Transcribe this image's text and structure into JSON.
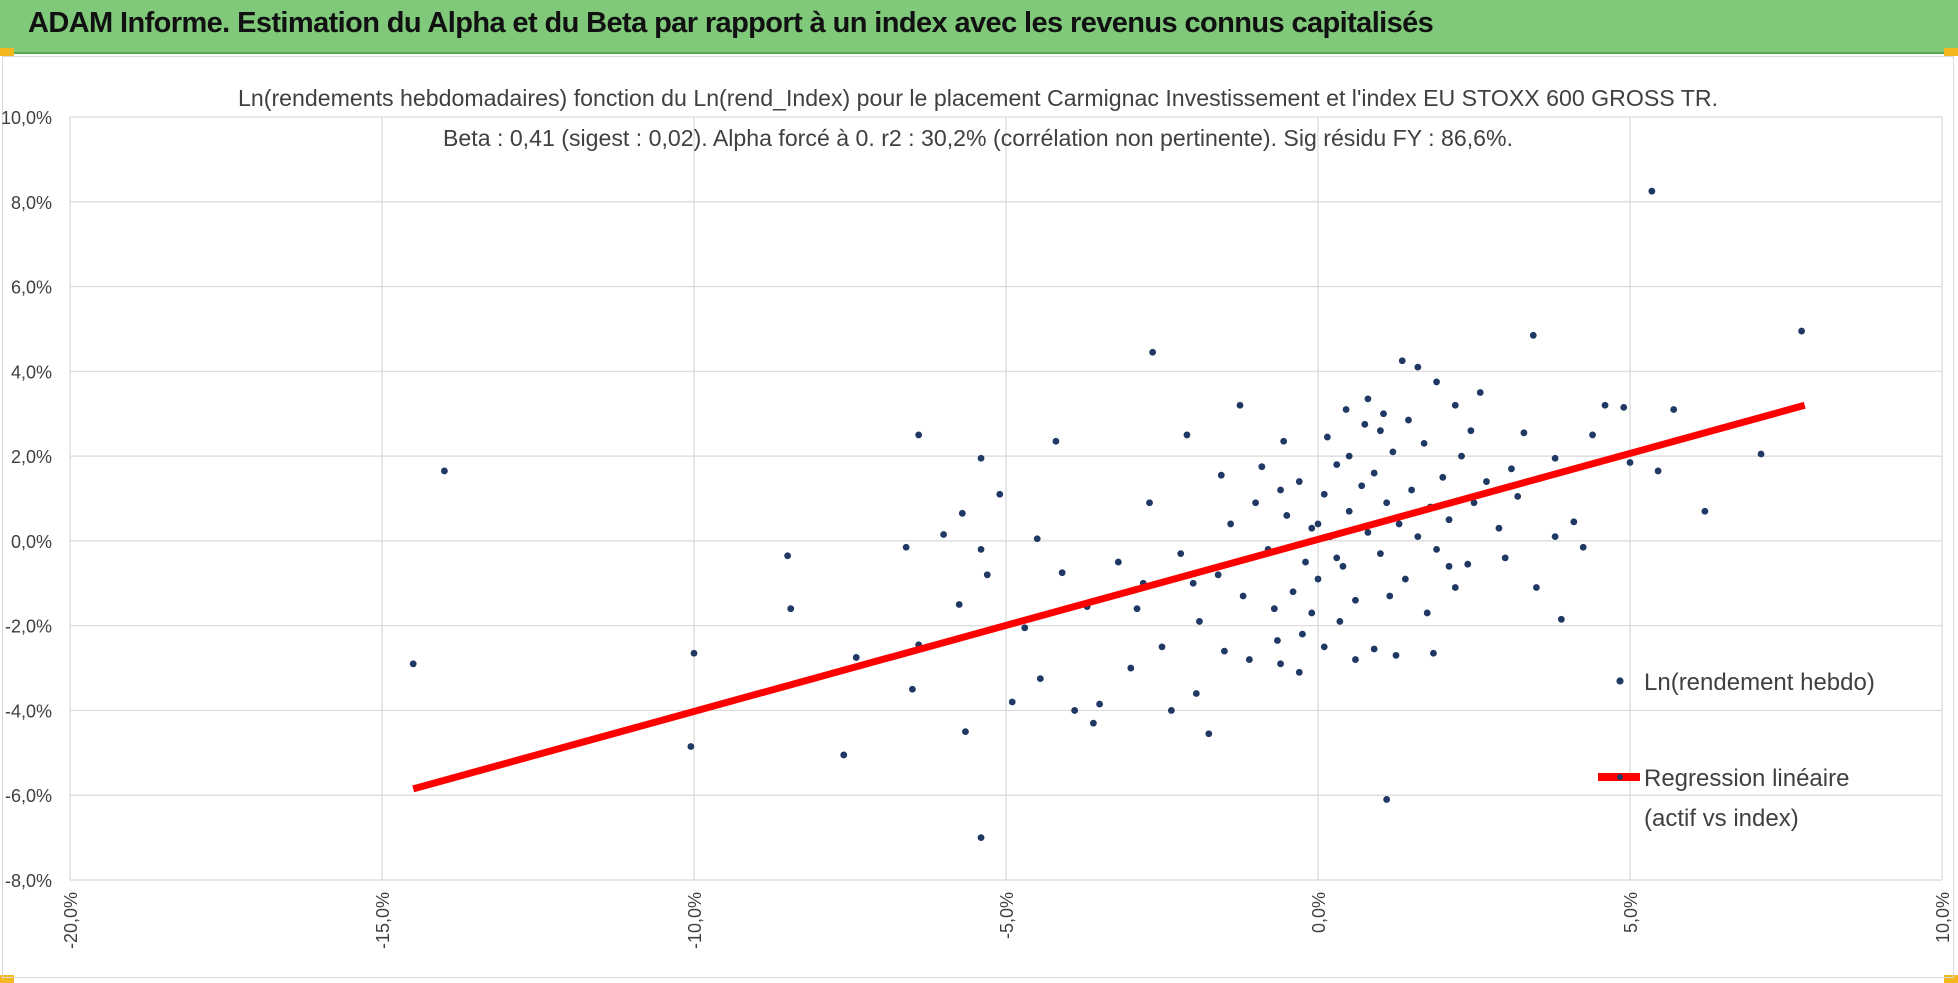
{
  "header": {
    "title": "ADAM Informe. Estimation du Alpha et du Beta par rapport à un index avec les revenus connus capitalisés"
  },
  "colors": {
    "banner": "#80c97b",
    "points": "#203864",
    "regression": "#ff0000",
    "corner": "#f2b81e"
  },
  "chart_data": {
    "type": "scatter",
    "title": "Ln(rendements hebdomadaires) fonction du Ln(rend_Index) pour le placement Carmignac Investissement  et l'index EU STOXX 600 GROSS TR.",
    "subtitle": "Beta : 0,41 (sigest : 0,02).  Alpha forcé à 0. r2 : 30,2% (corrélation non pertinente). Sig résidu FY : 86,6%.",
    "xlim": [
      -20,
      10
    ],
    "ylim": [
      -8,
      10
    ],
    "x_ticks": [
      "-20,0%",
      "-15,0%",
      "-10,0%",
      "-5,0%",
      "0,0%",
      "5,0%",
      "10,0%"
    ],
    "y_ticks": [
      "10,0%",
      "8,0%",
      "6,0%",
      "4,0%",
      "2,0%",
      "0,0%",
      "-2,0%",
      "-4,0%",
      "-6,0%",
      "-8,0%"
    ],
    "grid": true,
    "legend_position": "right",
    "series": [
      {
        "name": "Ln(rendement hebdo)",
        "type": "scatter",
        "points": [
          [
            -14.5,
            -2.9
          ],
          [
            -14.0,
            1.65
          ],
          [
            -10.0,
            -2.65
          ],
          [
            -10.05,
            -4.85
          ],
          [
            -8.5,
            -0.35
          ],
          [
            -8.45,
            -1.6
          ],
          [
            -7.6,
            -5.05
          ],
          [
            -7.4,
            -2.75
          ],
          [
            -6.6,
            -0.15
          ],
          [
            -6.5,
            -3.5
          ],
          [
            -6.4,
            2.5
          ],
          [
            -6.4,
            -2.45
          ],
          [
            -6.0,
            0.15
          ],
          [
            -5.75,
            -1.5
          ],
          [
            -5.7,
            0.65
          ],
          [
            -5.65,
            -4.5
          ],
          [
            -5.4,
            1.95
          ],
          [
            -5.4,
            -7.0
          ],
          [
            -5.4,
            -0.2
          ],
          [
            -5.3,
            -0.8
          ],
          [
            -5.1,
            1.1
          ],
          [
            -4.9,
            -3.8
          ],
          [
            -4.7,
            -2.05
          ],
          [
            -4.5,
            0.05
          ],
          [
            -4.45,
            -3.25
          ],
          [
            -4.2,
            2.35
          ],
          [
            -4.1,
            -0.75
          ],
          [
            -3.9,
            -4.0
          ],
          [
            -3.7,
            -1.55
          ],
          [
            -3.6,
            -4.3
          ],
          [
            -3.5,
            -3.85
          ],
          [
            -3.0,
            -3.0
          ],
          [
            -2.9,
            -1.6
          ],
          [
            -2.7,
            0.9
          ],
          [
            -2.65,
            4.45
          ],
          [
            -2.35,
            -4.0
          ],
          [
            -2.1,
            2.5
          ],
          [
            -2.0,
            -1.0
          ],
          [
            -1.95,
            -3.6
          ],
          [
            -1.75,
            -4.55
          ],
          [
            -1.55,
            1.55
          ],
          [
            -1.25,
            3.2
          ],
          [
            -1.1,
            -2.8
          ],
          [
            -0.6,
            -2.9
          ],
          [
            -0.6,
            1.2
          ],
          [
            -0.55,
            2.35
          ],
          [
            -0.3,
            -3.1
          ],
          [
            -0.1,
            -1.7
          ],
          [
            0.0,
            0.4
          ],
          [
            0.1,
            -2.5
          ],
          [
            0.3,
            -0.4
          ],
          [
            0.5,
            2.0
          ],
          [
            0.6,
            -2.8
          ],
          [
            0.8,
            3.35
          ],
          [
            0.9,
            -2.55
          ],
          [
            1.0,
            2.6
          ],
          [
            1.1,
            -6.1
          ],
          [
            1.15,
            -1.3
          ],
          [
            1.25,
            -2.7
          ],
          [
            1.35,
            4.25
          ],
          [
            1.6,
            4.1
          ],
          [
            1.85,
            -2.65
          ],
          [
            1.9,
            3.75
          ],
          [
            2.1,
            -0.6
          ],
          [
            2.2,
            3.2
          ],
          [
            2.4,
            -0.55
          ],
          [
            2.6,
            3.5
          ],
          [
            3.0,
            -0.4
          ],
          [
            3.2,
            1.05
          ],
          [
            3.3,
            2.55
          ],
          [
            3.45,
            4.85
          ],
          [
            3.5,
            -1.1
          ],
          [
            3.8,
            1.95
          ],
          [
            3.8,
            0.1
          ],
          [
            3.9,
            -1.85
          ],
          [
            4.1,
            0.45
          ],
          [
            4.25,
            -0.15
          ],
          [
            4.4,
            2.5
          ],
          [
            4.6,
            3.2
          ],
          [
            4.9,
            3.15
          ],
          [
            5.0,
            1.85
          ],
          [
            5.35,
            8.25
          ],
          [
            5.45,
            1.65
          ],
          [
            5.7,
            3.1
          ],
          [
            6.2,
            0.7
          ],
          [
            7.1,
            2.05
          ],
          [
            7.75,
            4.95
          ],
          [
            -3.2,
            -0.5
          ],
          [
            -2.8,
            -1.0
          ],
          [
            -2.5,
            -2.5
          ],
          [
            -2.2,
            -0.3
          ],
          [
            -1.9,
            -1.9
          ],
          [
            -1.6,
            -0.8
          ],
          [
            -1.4,
            0.4
          ],
          [
            -1.2,
            -1.3
          ],
          [
            -1.0,
            0.9
          ],
          [
            -0.8,
            -0.2
          ],
          [
            -0.7,
            -1.6
          ],
          [
            -0.5,
            0.6
          ],
          [
            -0.4,
            -1.2
          ],
          [
            -0.3,
            1.4
          ],
          [
            -0.2,
            -0.5
          ],
          [
            -0.1,
            0.3
          ],
          [
            0.0,
            -0.9
          ],
          [
            0.1,
            1.1
          ],
          [
            0.2,
            0.1
          ],
          [
            0.3,
            1.8
          ],
          [
            0.4,
            -0.6
          ],
          [
            0.5,
            0.7
          ],
          [
            0.6,
            -1.4
          ],
          [
            0.7,
            1.3
          ],
          [
            0.8,
            0.2
          ],
          [
            0.9,
            1.6
          ],
          [
            1.0,
            -0.3
          ],
          [
            1.1,
            0.9
          ],
          [
            1.2,
            2.1
          ],
          [
            1.3,
            0.4
          ],
          [
            1.4,
            -0.9
          ],
          [
            1.5,
            1.2
          ],
          [
            1.6,
            0.1
          ],
          [
            1.7,
            2.3
          ],
          [
            1.8,
            0.8
          ],
          [
            1.9,
            -0.2
          ],
          [
            2.0,
            1.5
          ],
          [
            2.1,
            0.5
          ],
          [
            2.2,
            -1.1
          ],
          [
            2.3,
            2.0
          ],
          [
            2.5,
            0.9
          ],
          [
            2.7,
            1.4
          ],
          [
            2.9,
            0.3
          ],
          [
            3.1,
            1.7
          ],
          [
            0.45,
            3.1
          ],
          [
            0.75,
            2.75
          ],
          [
            1.05,
            3.0
          ],
          [
            -0.9,
            1.75
          ],
          [
            -1.5,
            -2.6
          ],
          [
            -0.25,
            -2.2
          ],
          [
            0.35,
            -1.9
          ],
          [
            1.45,
            2.85
          ],
          [
            0.15,
            2.45
          ],
          [
            -0.65,
            -2.35
          ],
          [
            2.45,
            2.6
          ],
          [
            1.75,
            -1.7
          ]
        ]
      },
      {
        "name": "Regression linéaire",
        "name_line2": "(actif vs index)",
        "type": "line",
        "points": [
          [
            -14.5,
            -5.85
          ],
          [
            7.8,
            3.2
          ]
        ]
      }
    ]
  }
}
